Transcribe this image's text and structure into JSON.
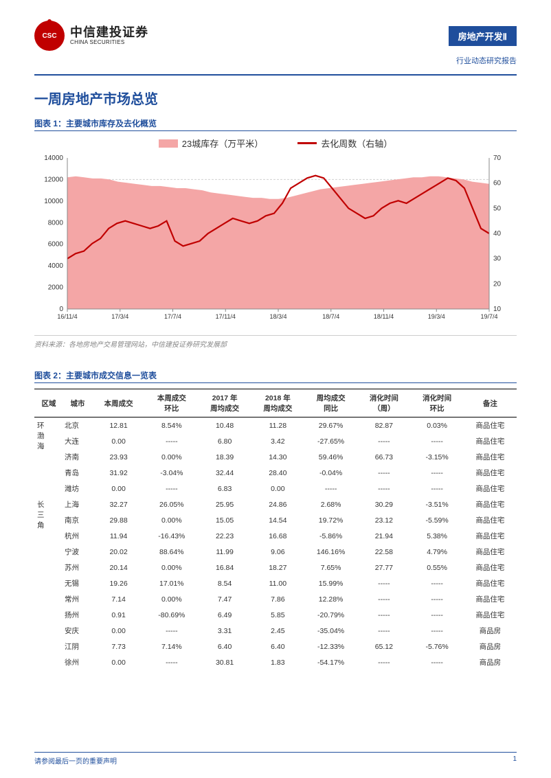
{
  "header": {
    "company_cn": "中信建投证券",
    "company_en": "CHINA SECURITIES",
    "logo_inner": "CSC",
    "tag": "房地产开发Ⅱ",
    "subtitle": "行业动态研究报告"
  },
  "section_title": "一周房地产市场总览",
  "chart1": {
    "label": "图表 1：主要城市库存及去化概览",
    "legend_area": "23城库存（万平米）",
    "legend_line": "去化周数（右轴）",
    "source": "资料来源：各地房地产交易管理网站，中信建投证券研究发展部",
    "y_left": {
      "min": 0,
      "max": 14000,
      "step": 2000
    },
    "y_right": {
      "min": 10,
      "max": 70,
      "step": 10
    },
    "x_labels": [
      "16/11/4",
      "17/3/4",
      "17/7/4",
      "17/11/4",
      "18/3/4",
      "18/7/4",
      "18/11/4",
      "19/3/4",
      "19/7/4"
    ],
    "area_color": "#f4a6a6",
    "line_color": "#c00000",
    "grid_color": "#d0d0d0",
    "bg": "#ffffff",
    "area_values": [
      12200,
      12300,
      12200,
      12100,
      12100,
      12000,
      11800,
      11700,
      11600,
      11500,
      11400,
      11400,
      11300,
      11200,
      11200,
      11100,
      11000,
      10800,
      10700,
      10600,
      10500,
      10400,
      10300,
      10300,
      10200,
      10200,
      10300,
      10500,
      10700,
      10900,
      11100,
      11200,
      11300,
      11400,
      11500,
      11600,
      11700,
      11800,
      11900,
      12000,
      12100,
      12200,
      12200,
      12300,
      12300,
      12200,
      12100,
      12000,
      11800,
      11700,
      11600
    ],
    "line_values": [
      30,
      32,
      33,
      36,
      38,
      42,
      44,
      45,
      44,
      43,
      42,
      43,
      45,
      37,
      35,
      36,
      37,
      40,
      42,
      44,
      46,
      45,
      44,
      45,
      47,
      48,
      52,
      58,
      60,
      62,
      63,
      62,
      58,
      54,
      50,
      48,
      46,
      47,
      50,
      52,
      53,
      52,
      54,
      56,
      58,
      60,
      62,
      61,
      58,
      50,
      42,
      40
    ]
  },
  "chart2": {
    "label": "图表 2：主要城市成交信息一览表",
    "columns": [
      "区域",
      "城市",
      "本周成交",
      "本周成交\n环比",
      "2017 年\n周均成交",
      "2018 年\n周均成交",
      "周均成交\n同比",
      "消化时间\n（周）",
      "消化时间\n环比",
      "备注"
    ],
    "regions": [
      {
        "name": "环\n渤\n海",
        "rows": [
          [
            "北京",
            "12.81",
            "8.54%",
            "10.48",
            "11.28",
            "29.67%",
            "82.87",
            "0.03%",
            "商品住宅"
          ],
          [
            "大连",
            "0.00",
            "-----",
            "6.80",
            "3.42",
            "-27.65%",
            "-----",
            "-----",
            "商品住宅"
          ],
          [
            "济南",
            "23.93",
            "0.00%",
            "18.39",
            "14.30",
            "59.46%",
            "66.73",
            "-3.15%",
            "商品住宅"
          ],
          [
            "青岛",
            "31.92",
            "-3.04%",
            "32.44",
            "28.40",
            "-0.04%",
            "-----",
            "-----",
            "商品住宅"
          ],
          [
            "潍坊",
            "0.00",
            "-----",
            "6.83",
            "0.00",
            "-----",
            "-----",
            "-----",
            "商品住宅"
          ]
        ]
      },
      {
        "name": "长\n三\n角",
        "rows": [
          [
            "上海",
            "32.27",
            "26.05%",
            "25.95",
            "24.86",
            "2.68%",
            "30.29",
            "-3.51%",
            "商品住宅"
          ],
          [
            "南京",
            "29.88",
            "0.00%",
            "15.05",
            "14.54",
            "19.72%",
            "23.12",
            "-5.59%",
            "商品住宅"
          ],
          [
            "杭州",
            "11.94",
            "-16.43%",
            "22.23",
            "16.68",
            "-5.86%",
            "21.94",
            "5.38%",
            "商品住宅"
          ],
          [
            "宁波",
            "20.02",
            "88.64%",
            "11.99",
            "9.06",
            "146.16%",
            "22.58",
            "4.79%",
            "商品住宅"
          ],
          [
            "苏州",
            "20.14",
            "0.00%",
            "16.84",
            "18.27",
            "7.65%",
            "27.77",
            "0.55%",
            "商品住宅"
          ],
          [
            "无锡",
            "19.26",
            "17.01%",
            "8.54",
            "11.00",
            "15.99%",
            "-----",
            "-----",
            "商品住宅"
          ],
          [
            "常州",
            "7.14",
            "0.00%",
            "7.47",
            "7.86",
            "12.28%",
            "-----",
            "-----",
            "商品住宅"
          ],
          [
            "扬州",
            "0.91",
            "-80.69%",
            "6.49",
            "5.85",
            "-20.79%",
            "-----",
            "-----",
            "商品住宅"
          ],
          [
            "安庆",
            "0.00",
            "-----",
            "3.31",
            "2.45",
            "-35.04%",
            "-----",
            "-----",
            "商品房"
          ],
          [
            "江阴",
            "7.73",
            "7.14%",
            "6.40",
            "6.40",
            "-12.33%",
            "65.12",
            "-5.76%",
            "商品房"
          ],
          [
            "徐州",
            "0.00",
            "-----",
            "30.81",
            "1.83",
            "-54.17%",
            "-----",
            "-----",
            "商品房"
          ]
        ]
      }
    ]
  },
  "footer": {
    "left": "请参阅最后一页的重要声明",
    "page": "1"
  }
}
